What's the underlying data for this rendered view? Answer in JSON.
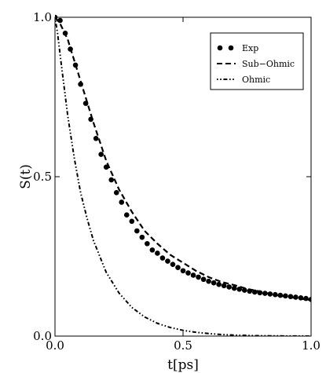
{
  "chart_data": {
    "type": "line",
    "title": "",
    "xlabel": "t[ps]",
    "ylabel": "S(t)",
    "xlim": [
      0.0,
      1.0
    ],
    "ylim": [
      0.0,
      1.0
    ],
    "xticks": [
      "0.0",
      "0.5",
      "1.0"
    ],
    "yticks": [
      "0.0",
      "0.5",
      "1.0"
    ],
    "grid": false,
    "legend_position": "top-right",
    "series": [
      {
        "name": "Exp",
        "style": "dots",
        "x": [
          0.0,
          0.02,
          0.04,
          0.06,
          0.08,
          0.1,
          0.12,
          0.14,
          0.16,
          0.18,
          0.2,
          0.22,
          0.24,
          0.26,
          0.28,
          0.3,
          0.32,
          0.34,
          0.36,
          0.38,
          0.4,
          0.42,
          0.44,
          0.46,
          0.48,
          0.5,
          0.52,
          0.54,
          0.56,
          0.58,
          0.6,
          0.62,
          0.64,
          0.66,
          0.68,
          0.7,
          0.72,
          0.74,
          0.76,
          0.78,
          0.8,
          0.82,
          0.84,
          0.86,
          0.88,
          0.9,
          0.92,
          0.94,
          0.96,
          0.98,
          1.0
        ],
        "y": [
          1.0,
          0.99,
          0.95,
          0.9,
          0.85,
          0.79,
          0.73,
          0.68,
          0.62,
          0.57,
          0.53,
          0.49,
          0.45,
          0.42,
          0.38,
          0.36,
          0.33,
          0.31,
          0.29,
          0.27,
          0.26,
          0.245,
          0.235,
          0.225,
          0.215,
          0.205,
          0.198,
          0.191,
          0.185,
          0.178,
          0.172,
          0.167,
          0.162,
          0.158,
          0.154,
          0.15,
          0.147,
          0.144,
          0.141,
          0.138,
          0.136,
          0.134,
          0.132,
          0.13,
          0.128,
          0.126,
          0.124,
          0.122,
          0.12,
          0.118,
          0.115
        ]
      },
      {
        "name": "Sub−Ohmic",
        "style": "dashed",
        "x": [
          0.0,
          0.02,
          0.05,
          0.1,
          0.15,
          0.2,
          0.25,
          0.3,
          0.35,
          0.4,
          0.45,
          0.5,
          0.55,
          0.6,
          0.65,
          0.7,
          0.75,
          0.8,
          0.85,
          0.9,
          0.95,
          1.0
        ],
        "y": [
          1.0,
          0.98,
          0.93,
          0.8,
          0.67,
          0.55,
          0.46,
          0.39,
          0.33,
          0.29,
          0.255,
          0.23,
          0.205,
          0.185,
          0.17,
          0.16,
          0.148,
          0.14,
          0.13,
          0.124,
          0.118,
          0.113
        ]
      },
      {
        "name": "Ohmic",
        "style": "dashdot",
        "x": [
          0.0,
          0.01,
          0.025,
          0.05,
          0.075,
          0.1,
          0.125,
          0.15,
          0.175,
          0.2,
          0.25,
          0.3,
          0.35,
          0.4,
          0.45,
          0.5,
          0.55,
          0.6,
          0.65,
          0.7,
          0.75,
          0.8,
          0.85,
          0.9,
          0.95,
          1.0
        ],
        "y": [
          1.0,
          0.95,
          0.85,
          0.69,
          0.56,
          0.45,
          0.37,
          0.3,
          0.25,
          0.2,
          0.135,
          0.09,
          0.06,
          0.04,
          0.027,
          0.018,
          0.012,
          0.008,
          0.005,
          0.003,
          0.002,
          0.001,
          0.0007,
          0.0004,
          0.0002,
          0.0001
        ]
      }
    ]
  }
}
